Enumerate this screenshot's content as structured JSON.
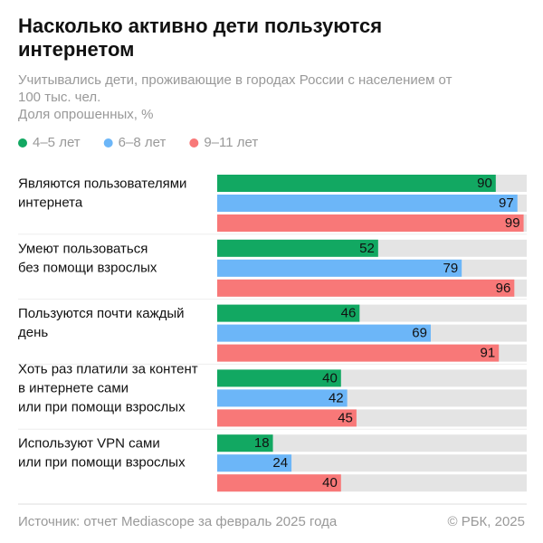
{
  "chart_data": {
    "type": "bar",
    "orientation": "horizontal",
    "title": "Насколько активно дети пользуются интернетом",
    "subtitle": "Учитывались дети, проживающие в городах России с населением от 100 тыс. чел.",
    "unit": "Доля опрошенных, %",
    "categories": [
      [
        "Являются пользователями",
        "интернета"
      ],
      [
        "Умеют пользоваться",
        "без помощи взрослых"
      ],
      [
        "Пользуются почти каждый",
        "день"
      ],
      [
        "Хоть раз платили за контент",
        "в интернете сами",
        "или при помощи взрослых"
      ],
      [
        "Используют VPN сами",
        "или при помощи взрослых"
      ]
    ],
    "series": [
      {
        "name": "4–5 лет",
        "color": "#12a862",
        "values": [
          90,
          52,
          46,
          40,
          18
        ]
      },
      {
        "name": "6–8 лет",
        "color": "#6cb6f8",
        "values": [
          97,
          79,
          69,
          42,
          24
        ]
      },
      {
        "name": "9–11 лет",
        "color": "#f87878",
        "values": [
          99,
          96,
          91,
          45,
          40
        ]
      }
    ],
    "xlim": [
      0,
      100
    ],
    "background_color": "#e4e4e4",
    "source": "Источник: отчет Mediascope за февраль 2025 года",
    "copyright": "© РБК, 2025"
  }
}
